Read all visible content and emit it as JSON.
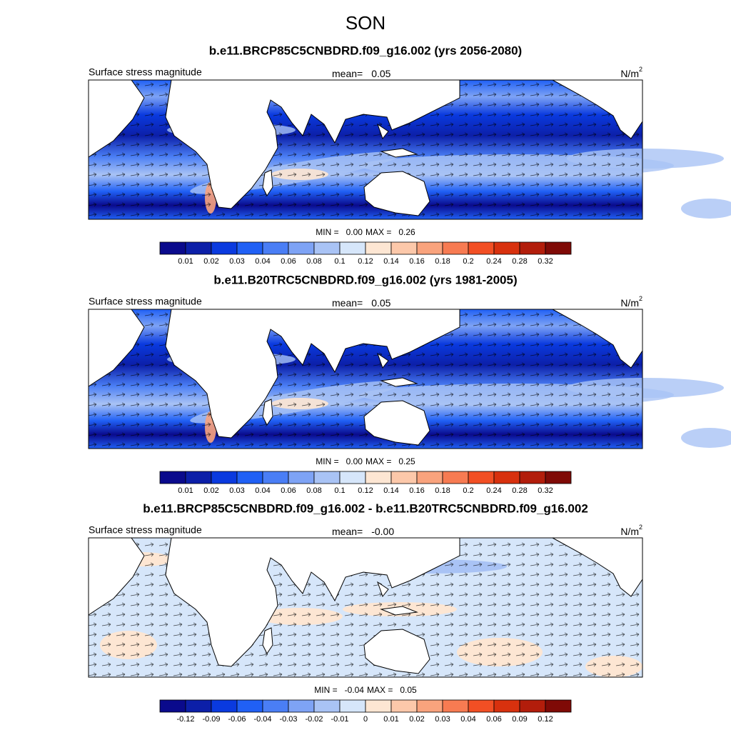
{
  "title": "SON",
  "panels": [
    {
      "title": "b.e11.BRCP85C5CNBDRD.f09_g16.002 (yrs 2056-2080)",
      "left_label": "Surface stress magnitude",
      "mean_label": "mean=",
      "mean": "0.05",
      "units": "N/m",
      "units_exp": "2",
      "min_label": "MIN =",
      "min": "0.00",
      "max_label": "MAX =",
      "max": "0.26",
      "field": "abs",
      "colorbar": {
        "colors": [
          "#0a0a8c",
          "#0c1fa8",
          "#0a3adf",
          "#2060f5",
          "#4a7ef5",
          "#7ea3f5",
          "#a9c3f5",
          "#d6e6fa",
          "#fde6d3",
          "#fcc8aa",
          "#f9a37d",
          "#f77b52",
          "#f24f24",
          "#d8310e",
          "#b21d0b",
          "#7f0a06"
        ],
        "labels": [
          "0.01",
          "0.02",
          "0.03",
          "0.04",
          "0.06",
          "0.08",
          "0.1",
          "0.12",
          "0.14",
          "0.16",
          "0.18",
          "0.2",
          "0.24",
          "0.28",
          "0.32"
        ]
      }
    },
    {
      "title": "b.e11.B20TRC5CNBDRD.f09_g16.002 (yrs 1981-2005)",
      "left_label": "Surface stress magnitude",
      "mean_label": "mean=",
      "mean": "0.05",
      "units": "N/m",
      "units_exp": "2",
      "min_label": "MIN =",
      "min": "0.00",
      "max_label": "MAX =",
      "max": "0.25",
      "field": "abs",
      "colorbar": {
        "colors": [
          "#0a0a8c",
          "#0c1fa8",
          "#0a3adf",
          "#2060f5",
          "#4a7ef5",
          "#7ea3f5",
          "#a9c3f5",
          "#d6e6fa",
          "#fde6d3",
          "#fcc8aa",
          "#f9a37d",
          "#f77b52",
          "#f24f24",
          "#d8310e",
          "#b21d0b",
          "#7f0a06"
        ],
        "labels": [
          "0.01",
          "0.02",
          "0.03",
          "0.04",
          "0.06",
          "0.08",
          "0.1",
          "0.12",
          "0.14",
          "0.16",
          "0.18",
          "0.2",
          "0.24",
          "0.28",
          "0.32"
        ]
      }
    },
    {
      "title": "b.e11.BRCP85C5CNBDRD.f09_g16.002 - b.e11.B20TRC5CNBDRD.f09_g16.002",
      "left_label": "Surface stress magnitude",
      "mean_label": "mean=",
      "mean": "-0.00",
      "units": "N/m",
      "units_exp": "2",
      "min_label": "MIN =",
      "min": "-0.04",
      "max_label": "MAX =",
      "max": "0.05",
      "field": "diff",
      "colorbar": {
        "colors": [
          "#0a0a8c",
          "#0c1fa8",
          "#0a3adf",
          "#2060f5",
          "#4a7ef5",
          "#7ea3f5",
          "#a9c3f5",
          "#d6e6fa",
          "#fde6d3",
          "#fcc8aa",
          "#f9a37d",
          "#f77b52",
          "#f24f24",
          "#d8310e",
          "#b21d0b",
          "#7f0a06"
        ],
        "labels": [
          "-0.12",
          "-0.09",
          "-0.06",
          "-0.04",
          "-0.03",
          "-0.02",
          "-0.01",
          "0",
          "0.01",
          "0.02",
          "0.03",
          "0.04",
          "0.06",
          "0.09",
          "0.12"
        ]
      }
    }
  ]
}
